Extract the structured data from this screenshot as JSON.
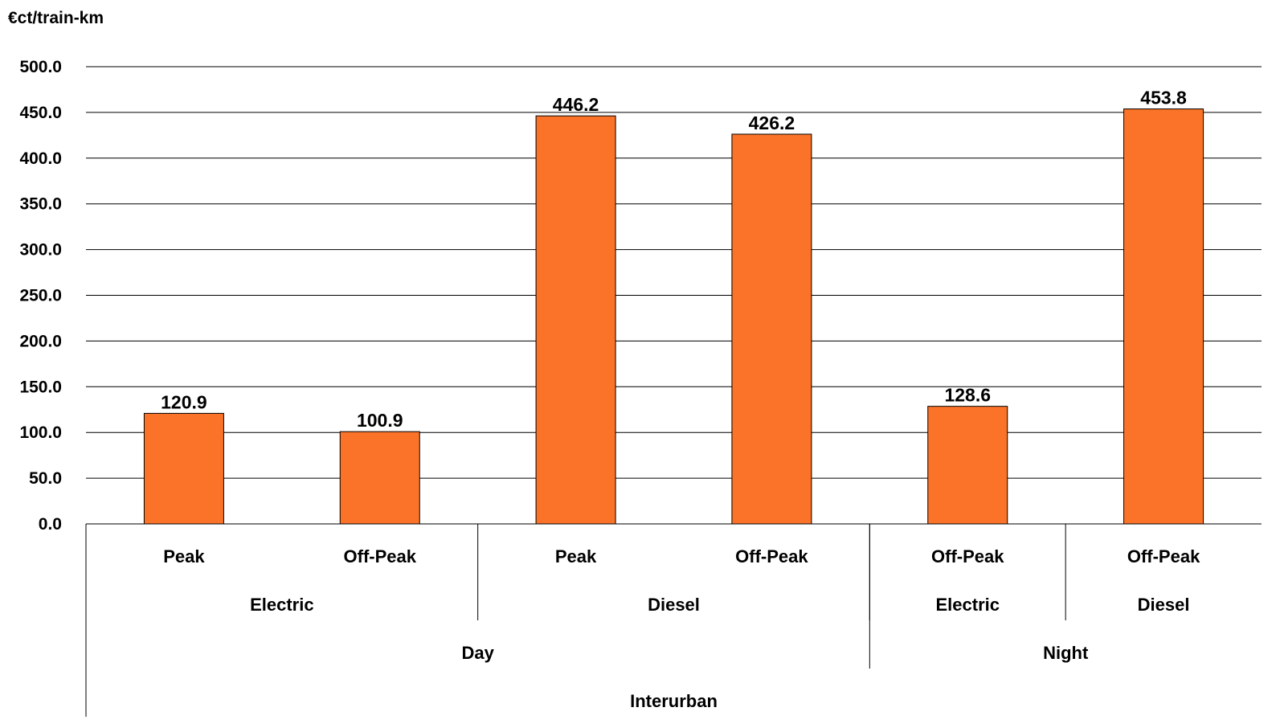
{
  "chart_data": {
    "type": "bar",
    "unit_label": "€ct/train-km",
    "ylim": [
      0,
      500
    ],
    "y_ticks": [
      "0.0",
      "50.0",
      "100.0",
      "150.0",
      "200.0",
      "250.0",
      "300.0",
      "350.0",
      "400.0",
      "450.0",
      "500.0"
    ],
    "grid": true,
    "legend": "none",
    "bar_color": "#FA7328",
    "categories": [
      {
        "label": "Peak",
        "group2": "Electric",
        "group3": "Day",
        "group4": "Interurban"
      },
      {
        "label": "Off-Peak",
        "group2": "Electric",
        "group3": "Day",
        "group4": "Interurban"
      },
      {
        "label": "Peak",
        "group2": "Diesel",
        "group3": "Day",
        "group4": "Interurban"
      },
      {
        "label": "Off-Peak",
        "group2": "Diesel",
        "group3": "Day",
        "group4": "Interurban"
      },
      {
        "label": "Off-Peak",
        "group2": "Electric",
        "group3": "Night",
        "group4": "Interurban"
      },
      {
        "label": "Off-Peak",
        "group2": "Diesel",
        "group3": "Night",
        "group4": "Interurban"
      }
    ],
    "values": [
      120.9,
      100.9,
      446.2,
      426.2,
      128.6,
      453.8
    ],
    "value_labels": [
      "120.9",
      "100.9",
      "446.2",
      "426.2",
      "128.6",
      "453.8"
    ],
    "level2_groups": [
      {
        "label": "Electric",
        "start": 0,
        "end": 1
      },
      {
        "label": "Diesel",
        "start": 2,
        "end": 3
      },
      {
        "label": "Electric",
        "start": 4,
        "end": 4
      },
      {
        "label": "Diesel",
        "start": 5,
        "end": 5
      }
    ],
    "level3_groups": [
      {
        "label": "Day",
        "start": 0,
        "end": 3
      },
      {
        "label": "Night",
        "start": 4,
        "end": 5
      }
    ],
    "level4_groups": [
      {
        "label": "Interurban",
        "start": 0,
        "end": 5
      }
    ]
  }
}
